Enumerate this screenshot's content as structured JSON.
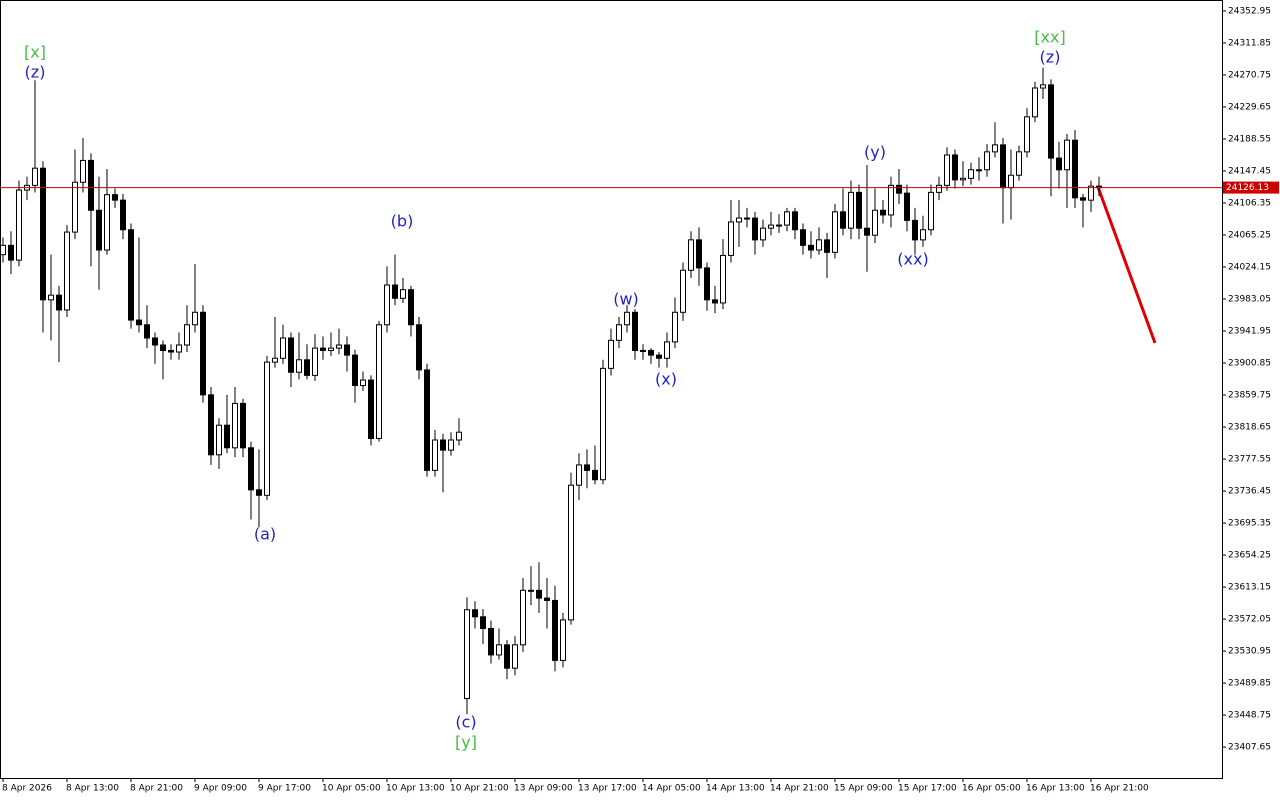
{
  "chart_data": {
    "type": "candlestick",
    "categories": [
      "8 Apr 2026",
      null,
      null,
      null,
      null,
      null,
      null,
      null,
      "8 Apr 13:00",
      null,
      null,
      null,
      null,
      null,
      null,
      null,
      "8 Apr 21:00",
      null,
      null,
      null,
      null,
      null,
      null,
      null,
      "9 Apr 09:00",
      null,
      null,
      null,
      null,
      null,
      null,
      null,
      "9 Apr 17:00",
      null,
      null,
      null,
      null,
      null,
      null,
      null,
      "10 Apr 05:00",
      null,
      null,
      null,
      null,
      null,
      null,
      null,
      "10 Apr 13:00",
      null,
      null,
      null,
      null,
      null,
      null,
      null,
      "10 Apr 21:00",
      null,
      null,
      null,
      null,
      null,
      null,
      null,
      "13 Apr 09:00",
      null,
      null,
      null,
      null,
      null,
      null,
      null,
      "13 Apr 17:00",
      null,
      null,
      null,
      null,
      null,
      null,
      null,
      "14 Apr 05:00",
      null,
      null,
      null,
      null,
      null,
      null,
      null,
      "14 Apr 13:00",
      null,
      null,
      null,
      null,
      null,
      null,
      null,
      "14 Apr 21:00",
      null,
      null,
      null,
      null,
      null,
      null,
      null,
      "15 Apr 09:00",
      null,
      null,
      null,
      null,
      null,
      null,
      null,
      "15 Apr 17:00",
      null,
      null,
      null,
      null,
      null,
      null,
      null,
      "16 Apr 05:00",
      null,
      null,
      null,
      null,
      null,
      null,
      null,
      "16 Apr 13:00",
      null,
      null,
      null,
      null,
      null,
      null,
      null,
      "16 Apr 21:00",
      null
    ],
    "open": [
      24040,
      24052,
      24033,
      24123,
      24129,
      24151,
      23982,
      23988,
      23969,
      24069,
      24133,
      24161,
      24097,
      24046,
      24117,
      24110,
      24072,
      23956,
      23950,
      23933,
      23924,
      23917,
      23915,
      23924,
      23950,
      23966,
      23860,
      23783,
      23821,
      23792,
      23849,
      23792,
      23738,
      23731,
      23902,
      23907,
      23933,
      23889,
      23905,
      23885,
      23920,
      23917,
      23920,
      23924,
      23911,
      23872,
      23879,
      23804,
      23950,
      24001,
      23984,
      23995,
      23950,
      23892,
      23763,
      23802,
      23789,
      23802,
      23470,
      23584,
      23575,
      23560,
      23526,
      23539,
      23509,
      23539,
      23609,
      23609,
      23599,
      23596,
      23519,
      23571,
      23744,
      23770,
      23763,
      23751,
      23894,
      23930,
      23950,
      23966,
      23917,
      23917,
      23911,
      23907,
      23928,
      23966,
      24020,
      24059,
      24023,
      23982,
      23978,
      24039,
      24082,
      24087,
      24087,
      24059,
      24074,
      24078,
      24078,
      24095,
      24072,
      24052,
      24046,
      24059,
      24043,
      24095,
      24074,
      24120,
      24074,
      24065,
      24097,
      24091,
      24129,
      24119,
      24084,
      24059,
      24072,
      24120,
      24129,
      24168,
      24136,
      24138,
      24149,
      24149,
      24172,
      24181,
      24126,
      24142,
      24172,
      24217,
      24254,
      24258,
      24164,
      24149,
      24187,
      24113,
      24110,
      24128
    ],
    "high": [
      24062,
      24070,
      24135,
      24140,
      24264,
      24160,
      24040,
      24000,
      24078,
      24175,
      24190,
      24170,
      24140,
      24150,
      24125,
      24118,
      24080,
      24062,
      23975,
      23940,
      23930,
      23925,
      23940,
      23975,
      24028,
      23975,
      23870,
      23830,
      23860,
      23870,
      23855,
      23800,
      23790,
      23910,
      23960,
      23950,
      23940,
      23940,
      23925,
      23938,
      23935,
      23940,
      23945,
      23935,
      23918,
      23890,
      23885,
      23955,
      24025,
      24040,
      24010,
      24000,
      23960,
      23900,
      23815,
      23810,
      23812,
      23830,
      23600,
      23595,
      23585,
      23570,
      23560,
      23545,
      23550,
      23625,
      23640,
      23645,
      23625,
      23615,
      23580,
      23760,
      23785,
      23790,
      23795,
      23905,
      23945,
      23960,
      23975,
      23970,
      23925,
      23920,
      23915,
      23940,
      23985,
      24030,
      24070,
      24075,
      24030,
      24000,
      24060,
      24110,
      24110,
      24100,
      24095,
      24085,
      24095,
      24092,
      24100,
      24100,
      24080,
      24070,
      24075,
      24068,
      24105,
      24125,
      24135,
      24130,
      24155,
      24125,
      24110,
      24140,
      24150,
      24130,
      24100,
      24090,
      24130,
      24140,
      24178,
      24175,
      24160,
      24158,
      24165,
      24182,
      24210,
      24190,
      24175,
      24180,
      24228,
      24262,
      24280,
      24265,
      24185,
      24195,
      24200,
      24118,
      24135,
      24140
    ],
    "low": [
      24030,
      24015,
      24025,
      24110,
      24120,
      23940,
      23930,
      23902,
      23960,
      24060,
      24120,
      24025,
      23995,
      24040,
      24100,
      24060,
      23945,
      23940,
      23920,
      23900,
      23880,
      23905,
      23905,
      23915,
      23940,
      23850,
      23770,
      23765,
      23785,
      23780,
      23780,
      23700,
      23690,
      23725,
      23895,
      23900,
      23870,
      23880,
      23880,
      23878,
      23905,
      23910,
      23912,
      23890,
      23850,
      23865,
      23795,
      23800,
      23940,
      23975,
      23978,
      23935,
      23880,
      23755,
      23755,
      23735,
      23782,
      23795,
      23450,
      23560,
      23540,
      23515,
      23520,
      23495,
      23500,
      23530,
      23590,
      23580,
      23560,
      23505,
      23510,
      23565,
      23725,
      23740,
      23745,
      23745,
      23885,
      23920,
      23940,
      23905,
      23905,
      23900,
      23895,
      23895,
      23920,
      23955,
      24010,
      24000,
      23968,
      23965,
      23970,
      24030,
      24050,
      24075,
      24040,
      24050,
      24065,
      24068,
      24070,
      24060,
      24040,
      24035,
      24040,
      24010,
      24035,
      24065,
      24060,
      24060,
      24018,
      24055,
      24080,
      24075,
      24105,
      24070,
      24040,
      24050,
      24065,
      24110,
      24122,
      24125,
      24128,
      24130,
      24135,
      24140,
      24165,
      24080,
      24085,
      24135,
      24165,
      24210,
      24240,
      24115,
      24125,
      24100,
      24100,
      24075,
      24095,
      24115
    ],
    "close": [
      24052,
      24033,
      24123,
      24129,
      24151,
      23982,
      23988,
      23969,
      24069,
      24133,
      24161,
      24097,
      24046,
      24117,
      24110,
      24072,
      23956,
      23950,
      23933,
      23924,
      23917,
      23915,
      23924,
      23950,
      23966,
      23860,
      23783,
      23821,
      23792,
      23849,
      23792,
      23738,
      23731,
      23902,
      23907,
      23933,
      23889,
      23905,
      23885,
      23920,
      23917,
      23920,
      23924,
      23911,
      23872,
      23879,
      23804,
      23950,
      24001,
      23984,
      23995,
      23950,
      23892,
      23763,
      23802,
      23789,
      23802,
      23812,
      23584,
      23575,
      23560,
      23526,
      23539,
      23509,
      23539,
      23609,
      23609,
      23599,
      23596,
      23519,
      23571,
      23744,
      23770,
      23763,
      23751,
      23894,
      23930,
      23950,
      23966,
      23917,
      23917,
      23911,
      23907,
      23928,
      23966,
      24020,
      24059,
      24023,
      23982,
      23978,
      24039,
      24082,
      24087,
      24087,
      24059,
      24074,
      24078,
      24078,
      24095,
      24072,
      24052,
      24046,
      24059,
      24043,
      24095,
      24074,
      24120,
      24074,
      24065,
      24097,
      24091,
      24129,
      24119,
      24084,
      24059,
      24072,
      24120,
      24129,
      24168,
      24136,
      24138,
      24149,
      24149,
      24172,
      24181,
      24126,
      24142,
      24172,
      24217,
      24254,
      24258,
      24164,
      24149,
      24187,
      24113,
      24110,
      24128,
      24126.13
    ],
    "up_color": "#ffffff",
    "down_color": "#000000",
    "wick_color": "#000000",
    "current_price": 24126.13,
    "current_price_color": "#cc0000",
    "ylim": [
      23368,
      24367
    ],
    "yticks": [
      24352.95,
      24311.85,
      24270.75,
      24229.65,
      24188.55,
      24147.45,
      24106.35,
      24065.25,
      24024.15,
      23983.05,
      23941.95,
      23900.85,
      23859.75,
      23818.65,
      23777.55,
      23736.45,
      23695.35,
      23654.25,
      23613.15,
      23572.05,
      23530.95,
      23489.85,
      23448.75,
      23407.65
    ],
    "grid": false,
    "annotations": [
      {
        "text": "[x]",
        "color": "#44c044"
      },
      {
        "text": "(z)",
        "color": "#1f1fc8"
      },
      {
        "text": "(a)",
        "color": "#1f1fc8"
      },
      {
        "text": "(b)",
        "color": "#1f1fc8"
      },
      {
        "text": "(c)",
        "color": "#1f1fc8"
      },
      {
        "text": "[y]",
        "color": "#44c044"
      },
      {
        "text": "(w)",
        "color": "#1f1fc8"
      },
      {
        "text": "(x)",
        "color": "#1f1fc8"
      },
      {
        "text": "(y)",
        "color": "#1f1fc8"
      },
      {
        "text": "(xx)",
        "color": "#1f1fc8"
      },
      {
        "text": "[xx]",
        "color": "#44c044"
      },
      {
        "text": "(z)",
        "color": "#1f1fc8"
      }
    ]
  }
}
